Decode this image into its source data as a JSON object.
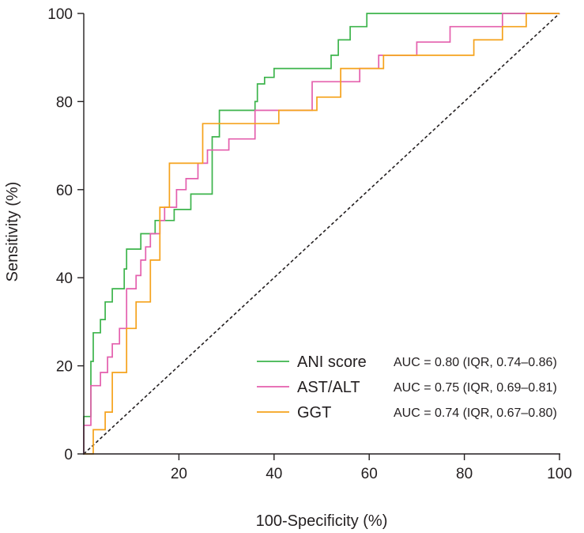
{
  "chart_data": {
    "type": "line",
    "title": "",
    "xlabel": "100-Specificity (%)",
    "ylabel": "Sensitivity (%)",
    "xlim": [
      0,
      100
    ],
    "ylim": [
      0,
      100
    ],
    "xticks": [
      20,
      40,
      60,
      80,
      100
    ],
    "yticks": [
      0,
      20,
      40,
      60,
      80,
      100
    ],
    "grid": false,
    "legend_position": "bottom-right",
    "reference_line": {
      "name": "chance",
      "x": [
        0,
        100
      ],
      "y": [
        0,
        100
      ],
      "style": "dashed",
      "color": "#231f20"
    },
    "series": [
      {
        "name": "ANI score",
        "auc": "AUC = 0.80 (IQR, 0.74–0.86)",
        "color": "#3cb44b",
        "x": [
          0,
          0,
          1.5,
          1.5,
          2,
          2,
          3.5,
          3.5,
          4.5,
          4.5,
          6,
          6,
          8.5,
          8.5,
          9,
          9,
          12,
          12,
          15,
          15,
          19,
          19,
          22.5,
          22.5,
          27,
          27,
          28.5,
          28.5,
          36,
          36,
          36.5,
          36.5,
          38,
          38,
          40,
          40,
          52,
          52,
          53.5,
          53.5,
          56,
          56,
          59.5,
          59.5,
          88,
          100
        ],
        "y": [
          0,
          8.5,
          8.5,
          21,
          21,
          27.5,
          27.5,
          30.5,
          30.5,
          34.5,
          34.5,
          37.5,
          37.5,
          42,
          42,
          46.5,
          46.5,
          50,
          50,
          53,
          53,
          55.5,
          55.5,
          59,
          59,
          72,
          72,
          78,
          78,
          80,
          80,
          84,
          84,
          85.5,
          85.5,
          87.5,
          87.5,
          90.5,
          90.5,
          94,
          94,
          97,
          97,
          100,
          100,
          100
        ]
      },
      {
        "name": "AST/ALT",
        "auc": "AUC = 0.75 (IQR, 0.69–0.81)",
        "color": "#e45fad",
        "x": [
          0,
          0,
          1.5,
          1.5,
          3.5,
          3.5,
          5,
          5,
          6,
          6,
          7.5,
          7.5,
          9,
          9,
          11,
          11,
          12,
          12,
          13,
          13,
          14,
          14,
          16,
          16,
          17,
          17,
          19.5,
          19.5,
          21.5,
          21.5,
          24,
          24,
          26,
          26,
          30.5,
          30.5,
          36,
          36,
          40,
          40,
          48,
          48,
          51,
          51,
          58,
          58,
          62,
          62,
          70,
          70,
          77,
          77,
          88,
          88,
          100
        ],
        "y": [
          0,
          6.5,
          6.5,
          15.5,
          15.5,
          18.5,
          18.5,
          22,
          22,
          25,
          25,
          28.5,
          28.5,
          37.5,
          37.5,
          40.5,
          40.5,
          44,
          44,
          47,
          47,
          50,
          50,
          53,
          53,
          56,
          56,
          60,
          60,
          62.5,
          62.5,
          66,
          66,
          69,
          69,
          71.5,
          71.5,
          78,
          78,
          78,
          78,
          84.5,
          84.5,
          84.5,
          84.5,
          87.5,
          87.5,
          90.5,
          90.5,
          93.5,
          93.5,
          97,
          97,
          100,
          100
        ]
      },
      {
        "name": "GGT",
        "auc": "AUC = 0.74 (IQR, 0.67–0.80)",
        "color": "#f5a21b",
        "x": [
          0,
          2,
          2,
          4.5,
          4.5,
          6,
          6,
          9,
          9,
          11,
          11,
          14,
          14,
          16,
          16,
          18,
          18,
          25,
          25,
          31,
          31,
          41,
          41,
          49,
          49,
          54,
          54,
          63,
          63,
          82,
          82,
          88,
          88,
          93,
          93,
          95,
          100
        ],
        "y": [
          0,
          0,
          5.5,
          5.5,
          9.5,
          9.5,
          18.5,
          18.5,
          28.5,
          28.5,
          34.5,
          34.5,
          44,
          44,
          56,
          56,
          66,
          66,
          75,
          75,
          75,
          75,
          78,
          78,
          81,
          81,
          87.5,
          87.5,
          90.5,
          90.5,
          94,
          94,
          97,
          97,
          100,
          100,
          100
        ]
      }
    ]
  }
}
